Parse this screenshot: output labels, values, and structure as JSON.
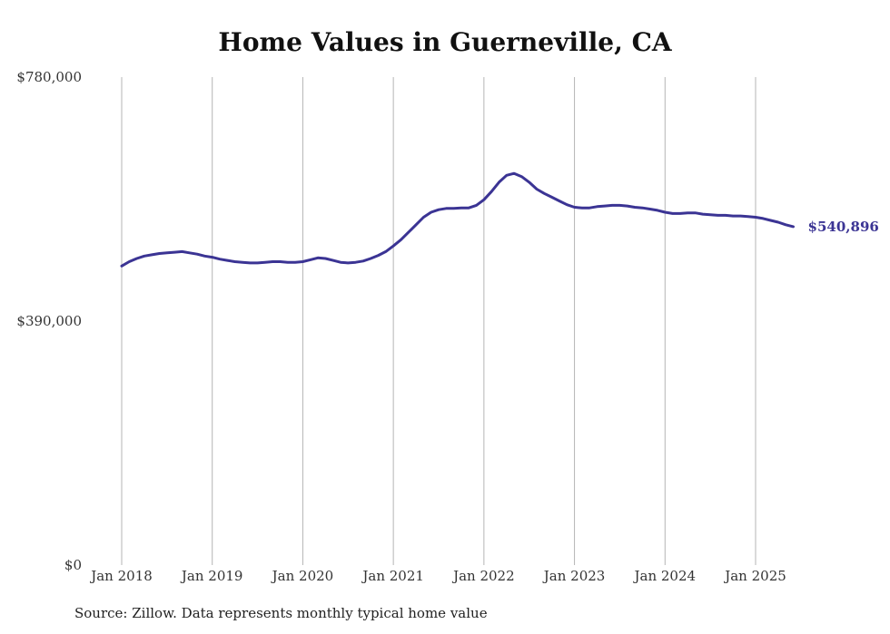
{
  "chart_data": {
    "type": "line",
    "title": "Home Values in Guerneville, CA",
    "source": "Source: Zillow. Data represents monthly typical home value",
    "xlabel": "",
    "ylabel": "",
    "y_ticks": [
      "$0",
      "$390,000",
      "$780,000"
    ],
    "y_tick_values": [
      0,
      390000,
      780000
    ],
    "ylim": [
      0,
      780000
    ],
    "x_ticks": [
      "Jan 2018",
      "Jan 2019",
      "Jan 2020",
      "Jan 2021",
      "Jan 2022",
      "Jan 2023",
      "Jan 2024",
      "Jan 2025"
    ],
    "x_tick_values": [
      "2018-01",
      "2019-01",
      "2020-01",
      "2021-01",
      "2022-01",
      "2023-01",
      "2024-01",
      "2025-01"
    ],
    "xlim": [
      "2018-01",
      "2025-06"
    ],
    "grid": "vertical",
    "line_color": "#3b3494",
    "end_label": "$540,896",
    "series": [
      {
        "points": [
          [
            "2018-01",
            478000
          ],
          [
            "2018-02",
            485000
          ],
          [
            "2018-03",
            490000
          ],
          [
            "2018-04",
            494000
          ],
          [
            "2018-05",
            496000
          ],
          [
            "2018-06",
            498000
          ],
          [
            "2018-07",
            499000
          ],
          [
            "2018-08",
            500000
          ],
          [
            "2018-09",
            501000
          ],
          [
            "2018-10",
            499000
          ],
          [
            "2018-11",
            497000
          ],
          [
            "2018-12",
            494000
          ],
          [
            "2019-01",
            492000
          ],
          [
            "2019-02",
            489000
          ],
          [
            "2019-03",
            487000
          ],
          [
            "2019-04",
            485000
          ],
          [
            "2019-05",
            484000
          ],
          [
            "2019-06",
            483000
          ],
          [
            "2019-07",
            483000
          ],
          [
            "2019-08",
            484000
          ],
          [
            "2019-09",
            485000
          ],
          [
            "2019-10",
            485000
          ],
          [
            "2019-11",
            484000
          ],
          [
            "2019-12",
            484000
          ],
          [
            "2020-01",
            485000
          ],
          [
            "2020-02",
            488000
          ],
          [
            "2020-03",
            491000
          ],
          [
            "2020-04",
            490000
          ],
          [
            "2020-05",
            487000
          ],
          [
            "2020-06",
            484000
          ],
          [
            "2020-07",
            483000
          ],
          [
            "2020-08",
            484000
          ],
          [
            "2020-09",
            486000
          ],
          [
            "2020-10",
            490000
          ],
          [
            "2020-11",
            495000
          ],
          [
            "2020-12",
            501000
          ],
          [
            "2021-01",
            510000
          ],
          [
            "2021-02",
            520000
          ],
          [
            "2021-03",
            532000
          ],
          [
            "2021-04",
            544000
          ],
          [
            "2021-05",
            556000
          ],
          [
            "2021-06",
            564000
          ],
          [
            "2021-07",
            568000
          ],
          [
            "2021-08",
            570000
          ],
          [
            "2021-09",
            570000
          ],
          [
            "2021-10",
            571000
          ],
          [
            "2021-11",
            571000
          ],
          [
            "2021-12",
            575000
          ],
          [
            "2022-01",
            584000
          ],
          [
            "2022-02",
            597000
          ],
          [
            "2022-03",
            612000
          ],
          [
            "2022-04",
            623000
          ],
          [
            "2022-05",
            626000
          ],
          [
            "2022-06",
            621000
          ],
          [
            "2022-07",
            612000
          ],
          [
            "2022-08",
            601000
          ],
          [
            "2022-09",
            594000
          ],
          [
            "2022-10",
            588000
          ],
          [
            "2022-11",
            582000
          ],
          [
            "2022-12",
            576000
          ],
          [
            "2023-01",
            572000
          ],
          [
            "2023-02",
            571000
          ],
          [
            "2023-03",
            571000
          ],
          [
            "2023-04",
            573000
          ],
          [
            "2023-05",
            574000
          ],
          [
            "2023-06",
            575000
          ],
          [
            "2023-07",
            575000
          ],
          [
            "2023-08",
            574000
          ],
          [
            "2023-09",
            572000
          ],
          [
            "2023-10",
            571000
          ],
          [
            "2023-11",
            569000
          ],
          [
            "2023-12",
            567000
          ],
          [
            "2024-01",
            564000
          ],
          [
            "2024-02",
            562000
          ],
          [
            "2024-03",
            562000
          ],
          [
            "2024-04",
            563000
          ],
          [
            "2024-05",
            563000
          ],
          [
            "2024-06",
            561000
          ],
          [
            "2024-07",
            560000
          ],
          [
            "2024-08",
            559000
          ],
          [
            "2024-09",
            559000
          ],
          [
            "2024-10",
            558000
          ],
          [
            "2024-11",
            558000
          ],
          [
            "2024-12",
            557000
          ],
          [
            "2025-01",
            556000
          ],
          [
            "2025-02",
            554000
          ],
          [
            "2025-03",
            551000
          ],
          [
            "2025-04",
            548000
          ],
          [
            "2025-05",
            544000
          ],
          [
            "2025-06",
            540896
          ]
        ]
      }
    ]
  }
}
